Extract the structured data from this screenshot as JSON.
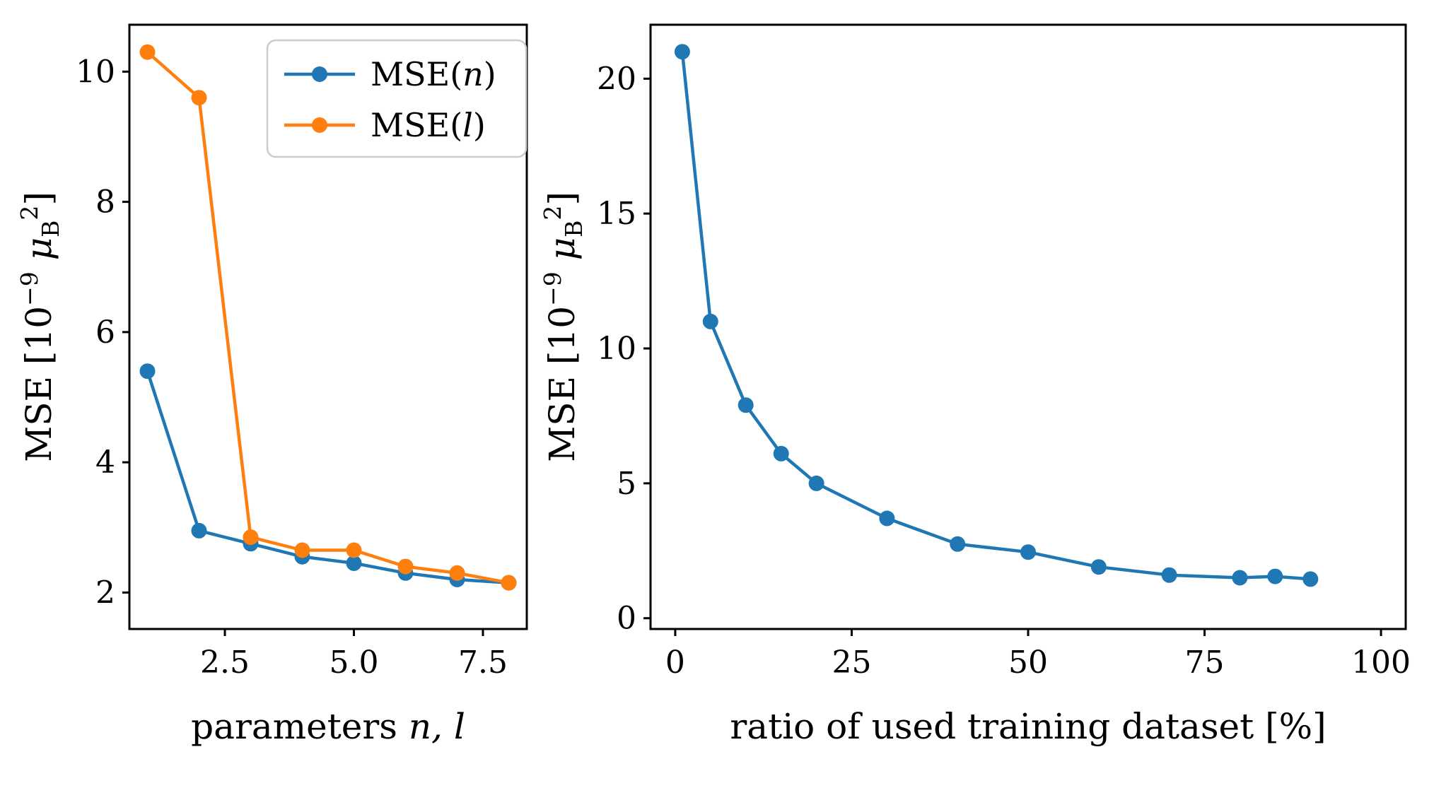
{
  "figure": {
    "background": "#ffffff",
    "text_color": "#000000",
    "chart_data": [
      {
        "type": "line",
        "title": "",
        "xlabel": "parameters n, l",
        "ylabel": "MSE [10^-9 uB^2]",
        "xlabel_parts": [
          {
            "t": "parameters "
          },
          {
            "t": "n, l",
            "i": true
          }
        ],
        "ylabel_parts": [
          {
            "t": "MSE [10"
          },
          {
            "t": "−9",
            "pos": "sup"
          },
          {
            "t": " "
          },
          {
            "t": "μ",
            "i": true
          },
          {
            "t": "B",
            "pos": "sub"
          },
          {
            "t": "2",
            "pos": "sup"
          },
          {
            "t": "]"
          }
        ],
        "xlim": [
          0.65,
          8.35
        ],
        "ylim": [
          1.44,
          10.72
        ],
        "grid": false,
        "xticks": {
          "values": [
            2.5,
            5.0,
            7.5
          ],
          "labels": [
            "2.5",
            "5.0",
            "7.5"
          ]
        },
        "yticks": {
          "values": [
            2,
            4,
            6,
            8,
            10
          ],
          "labels": [
            "2",
            "4",
            "6",
            "8",
            "10"
          ]
        },
        "x": [
          1,
          2,
          3,
          4,
          5,
          6,
          7,
          8
        ],
        "series": [
          {
            "name": "MSE(n)",
            "name_parts": [
              {
                "t": "MSE("
              },
              {
                "t": "n",
                "i": true
              },
              {
                "t": ")"
              }
            ],
            "color": "#1f77b4",
            "values": [
              5.4,
              2.95,
              2.75,
              2.55,
              2.45,
              2.3,
              2.2,
              2.15
            ]
          },
          {
            "name": "MSE(l)",
            "name_parts": [
              {
                "t": "MSE("
              },
              {
                "t": "l",
                "i": true
              },
              {
                "t": ")"
              }
            ],
            "color": "#ff7f0e",
            "values": [
              10.3,
              9.6,
              2.85,
              2.65,
              2.65,
              2.4,
              2.3,
              2.15
            ]
          }
        ],
        "legend": true,
        "legend_position": "upper right"
      },
      {
        "type": "line",
        "title": "",
        "xlabel": "ratio of used training dataset [%]",
        "ylabel": "MSE [10^-9 uB^2]",
        "xlabel_parts": [
          {
            "t": "ratio of used training dataset [%]"
          }
        ],
        "ylabel_parts": [
          {
            "t": "MSE [10"
          },
          {
            "t": "−9",
            "pos": "sup"
          },
          {
            "t": " "
          },
          {
            "t": "μ",
            "i": true
          },
          {
            "t": "B",
            "pos": "sub"
          },
          {
            "t": "2",
            "pos": "sup"
          },
          {
            "t": "]"
          }
        ],
        "xlim": [
          -3.5,
          103.5
        ],
        "ylim": [
          -0.4,
          22.0
        ],
        "grid": false,
        "xticks": {
          "values": [
            0,
            25,
            50,
            75,
            100
          ],
          "labels": [
            "0",
            "25",
            "50",
            "75",
            "100"
          ]
        },
        "yticks": {
          "values": [
            0,
            5,
            10,
            15,
            20
          ],
          "labels": [
            "0",
            "5",
            "10",
            "15",
            "20"
          ]
        },
        "series": [
          {
            "name": "MSE",
            "name_parts": [
              {
                "t": "MSE"
              }
            ],
            "color": "#1f77b4",
            "x": [
              1,
              5,
              10,
              15,
              20,
              30,
              40,
              50,
              60,
              70,
              80,
              85,
              90
            ],
            "values": [
              21.0,
              11.0,
              7.9,
              6.1,
              5.0,
              3.7,
              2.75,
              2.45,
              1.9,
              1.6,
              1.5,
              1.55,
              1.45
            ]
          }
        ],
        "legend": false
      }
    ]
  }
}
